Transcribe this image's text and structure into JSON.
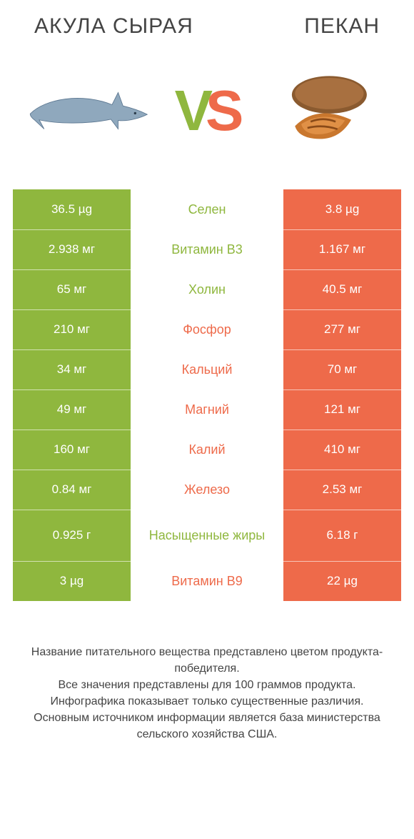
{
  "colors": {
    "green": "#8fb73e",
    "orange": "#ee6a4a",
    "white": "#ffffff",
    "mid_border": "#ffffff"
  },
  "header": {
    "left_title": "АКУЛА СЫРАЯ",
    "right_title": "ПЕКАН",
    "vs_v": "V",
    "vs_s": "S"
  },
  "rows": [
    {
      "left": "36.5 µg",
      "mid": "Селен",
      "right": "3.8 µg",
      "winner": "left",
      "tall": false
    },
    {
      "left": "2.938 мг",
      "mid": "Витамин B3",
      "right": "1.167 мг",
      "winner": "left",
      "tall": false
    },
    {
      "left": "65 мг",
      "mid": "Холин",
      "right": "40.5 мг",
      "winner": "left",
      "tall": false
    },
    {
      "left": "210 мг",
      "mid": "Фосфор",
      "right": "277 мг",
      "winner": "right",
      "tall": false
    },
    {
      "left": "34 мг",
      "mid": "Кальций",
      "right": "70 мг",
      "winner": "right",
      "tall": false
    },
    {
      "left": "49 мг",
      "mid": "Магний",
      "right": "121 мг",
      "winner": "right",
      "tall": false
    },
    {
      "left": "160 мг",
      "mid": "Калий",
      "right": "410 мг",
      "winner": "right",
      "tall": false
    },
    {
      "left": "0.84 мг",
      "mid": "Железо",
      "right": "2.53 мг",
      "winner": "right",
      "tall": false
    },
    {
      "left": "0.925 г",
      "mid": "Насыщенные жиры",
      "right": "6.18 г",
      "winner": "left",
      "tall": true
    },
    {
      "left": "3 µg",
      "mid": "Витамин B9",
      "right": "22 µg",
      "winner": "right",
      "tall": false
    }
  ],
  "footer": [
    "Название питательного вещества представлено цветом продукта-победителя.",
    "Все значения представлены для 100 граммов продукта.",
    "Инфографика показывает только существенные различия.",
    "Основным источником информации является база министерства сельского хозяйства США."
  ]
}
